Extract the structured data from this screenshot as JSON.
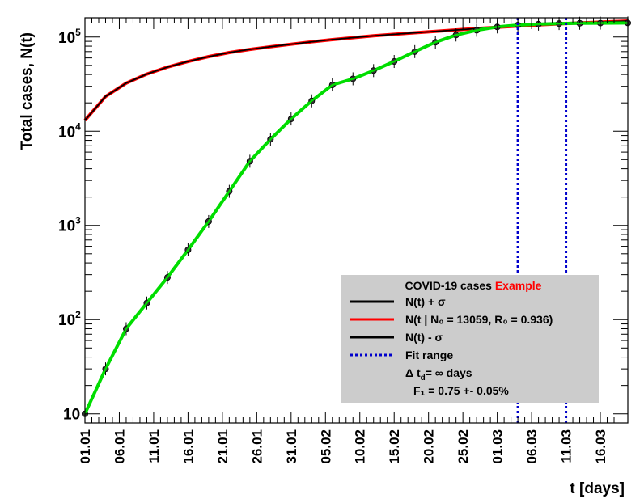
{
  "chart_data": {
    "type": "line",
    "title": "",
    "xlabel": "t [days]",
    "ylabel": "Total cases, N(t)",
    "yscale": "log",
    "xlim": [
      "2020-01-01",
      "2020-03-20"
    ],
    "ylim": [
      8,
      160000
    ],
    "x_ticks": [
      "01.01",
      "06.01",
      "11.01",
      "16.01",
      "21.01",
      "26.01",
      "31.01",
      "05.02",
      "10.02",
      "15.02",
      "20.02",
      "25.02",
      "01.03",
      "06.03",
      "11.03",
      "16.03"
    ],
    "y_ticks": [
      {
        "value": 10,
        "base": "10",
        "exp": ""
      },
      {
        "value": 100,
        "base": "10",
        "exp": "2"
      },
      {
        "value": 1000,
        "base": "10",
        "exp": "3"
      },
      {
        "value": 10000,
        "base": "10",
        "exp": "4"
      },
      {
        "value": 100000,
        "base": "10",
        "exp": "5"
      }
    ],
    "fit_range": [
      "2020-03-04",
      "2020-03-11"
    ],
    "data_points": {
      "x": [
        "2020-01-01",
        "2020-01-04",
        "2020-01-07",
        "2020-01-10",
        "2020-01-13",
        "2020-01-16",
        "2020-01-19",
        "2020-01-22",
        "2020-01-25",
        "2020-01-28",
        "2020-01-31",
        "2020-02-03",
        "2020-02-06",
        "2020-02-09",
        "2020-02-12",
        "2020-02-15",
        "2020-02-18",
        "2020-02-21",
        "2020-02-24",
        "2020-02-27",
        "2020-03-01",
        "2020-03-04",
        "2020-03-07",
        "2020-03-10",
        "2020-03-13",
        "2020-03-16",
        "2020-03-20"
      ],
      "y": [
        10,
        30,
        80,
        150,
        280,
        550,
        1100,
        2300,
        4800,
        8200,
        13500,
        21000,
        31000,
        36000,
        44000,
        55000,
        70000,
        88000,
        105000,
        118000,
        128000,
        134000,
        137000,
        139000,
        140000,
        140500,
        141000
      ]
    },
    "series": [
      {
        "name": "N(t) + σ",
        "color": "#000000",
        "x": [
          "2020-01-01",
          "2020-01-04",
          "2020-01-07",
          "2020-01-10",
          "2020-01-13",
          "2020-01-16",
          "2020-01-19",
          "2020-01-22",
          "2020-01-25",
          "2020-01-28",
          "2020-01-31",
          "2020-02-03",
          "2020-02-06",
          "2020-02-09",
          "2020-02-12",
          "2020-02-15",
          "2020-02-18",
          "2020-02-21",
          "2020-02-24",
          "2020-02-27",
          "2020-03-01",
          "2020-03-04",
          "2020-03-07",
          "2020-03-10",
          "2020-03-13",
          "2020-03-16",
          "2020-03-20"
        ],
        "y": [
          13100,
          23500,
          32500,
          40500,
          48000,
          55000,
          62000,
          68500,
          74000,
          79000,
          84000,
          89000,
          94000,
          98500,
          103000,
          107000,
          111000,
          115000,
          119000,
          123000,
          127000,
          131000,
          134500,
          138000,
          141000,
          144000,
          148000
        ]
      },
      {
        "name": "N(t | N₀ = 13059, R₀ = 0.936)",
        "color": "#ff0000",
        "x": [
          "2020-01-01",
          "2020-01-04",
          "2020-01-07",
          "2020-01-10",
          "2020-01-13",
          "2020-01-16",
          "2020-01-19",
          "2020-01-22",
          "2020-01-25",
          "2020-01-28",
          "2020-01-31",
          "2020-02-03",
          "2020-02-06",
          "2020-02-09",
          "2020-02-12",
          "2020-02-15",
          "2020-02-18",
          "2020-02-21",
          "2020-02-24",
          "2020-02-27",
          "2020-03-01",
          "2020-03-04",
          "2020-03-07",
          "2020-03-10",
          "2020-03-13",
          "2020-03-16",
          "2020-03-20"
        ],
        "y": [
          13059,
          23400,
          32400,
          40400,
          47900,
          54900,
          61900,
          68400,
          73900,
          78900,
          83900,
          88900,
          93900,
          98400,
          102900,
          106900,
          110900,
          114900,
          118900,
          122900,
          126900,
          130900,
          134400,
          137900,
          140900,
          143900,
          147900
        ]
      },
      {
        "name": "N(t) - σ",
        "color": "#000000",
        "x": [
          "2020-01-01",
          "2020-01-04",
          "2020-01-07",
          "2020-01-10",
          "2020-01-13",
          "2020-01-16",
          "2020-01-19",
          "2020-01-22",
          "2020-01-25",
          "2020-01-28",
          "2020-01-31",
          "2020-02-03",
          "2020-02-06",
          "2020-02-09",
          "2020-02-12",
          "2020-02-15",
          "2020-02-18",
          "2020-02-21",
          "2020-02-24",
          "2020-02-27",
          "2020-03-01",
          "2020-03-04",
          "2020-03-07",
          "2020-03-10",
          "2020-03-13",
          "2020-03-16",
          "2020-03-20"
        ],
        "y": [
          13000,
          23300,
          32300,
          40300,
          47800,
          54800,
          61800,
          68300,
          73800,
          78800,
          83800,
          88800,
          93800,
          98300,
          102800,
          106800,
          110800,
          114800,
          118800,
          122800,
          126800,
          130800,
          134300,
          137800,
          140800,
          143800,
          147800
        ]
      },
      {
        "name": "",
        "color": "#00dd00",
        "x": [
          "2020-01-01",
          "2020-01-04",
          "2020-01-07",
          "2020-01-10",
          "2020-01-13",
          "2020-01-16",
          "2020-01-19",
          "2020-01-22",
          "2020-01-25",
          "2020-01-28",
          "2020-01-31",
          "2020-02-03",
          "2020-02-06",
          "2020-02-09",
          "2020-02-12",
          "2020-02-15",
          "2020-02-18",
          "2020-02-21",
          "2020-02-24",
          "2020-02-27",
          "2020-03-01",
          "2020-03-04",
          "2020-03-07",
          "2020-03-10",
          "2020-03-13",
          "2020-03-16",
          "2020-03-20"
        ],
        "y": [
          10,
          30,
          80,
          150,
          280,
          550,
          1100,
          2300,
          4800,
          8200,
          13500,
          21000,
          31000,
          36000,
          44000,
          55000,
          70000,
          88000,
          105000,
          118000,
          128000,
          134000,
          137000,
          139000,
          140000,
          140500,
          141000
        ]
      }
    ],
    "legend": {
      "position": "bottom-right",
      "title": "COVID-19 cases",
      "title_highlight": "Example",
      "title_highlight_color": "#ff0000",
      "entries": [
        {
          "type": "line",
          "color": "#000000",
          "label": "N(t) +  σ"
        },
        {
          "type": "line",
          "color": "#ff0000",
          "label": "N(t | N₀ = 13059, R₀ =  0.936)"
        },
        {
          "type": "line",
          "color": "#000000",
          "label": "N(t) -  σ"
        },
        {
          "type": "dotted",
          "color": "#0000cc",
          "label": "Fit range"
        },
        {
          "type": "none",
          "label": "Δ t_d= ∞ days"
        },
        {
          "type": "none",
          "label": "F₁ =  0.75 +- 0.05%"
        }
      ],
      "background": "#cccccc"
    },
    "grid": false
  }
}
